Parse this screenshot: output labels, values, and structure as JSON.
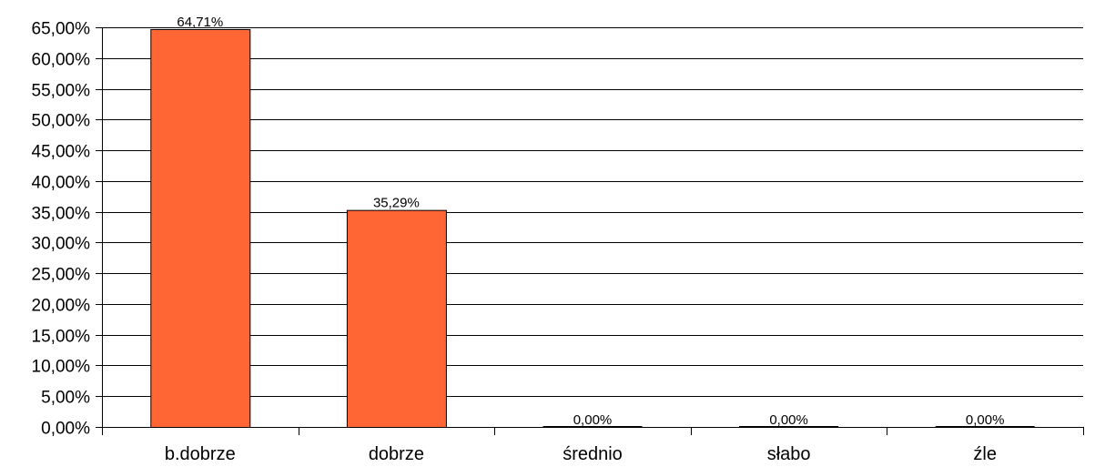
{
  "chart_data": {
    "type": "bar",
    "categories": [
      "b.dobrze",
      "dobrze",
      "średnio",
      "słabo",
      "źle"
    ],
    "values": [
      64.71,
      35.29,
      0.0,
      0.0,
      0.0
    ],
    "data_labels": [
      "64,71%",
      "35,29%",
      "0,00%",
      "0,00%",
      "0,00%"
    ],
    "title": "",
    "xlabel": "",
    "ylabel": "",
    "ylim": [
      0,
      65
    ],
    "y_ticks": [
      0,
      5,
      10,
      15,
      20,
      25,
      30,
      35,
      40,
      45,
      50,
      55,
      60,
      65
    ],
    "y_tick_labels": [
      "0,00%",
      "5,00%",
      "10,00%",
      "15,00%",
      "20,00%",
      "25,00%",
      "30,00%",
      "35,00%",
      "40,00%",
      "45,00%",
      "50,00%",
      "55,00%",
      "60,00%",
      "65,00%"
    ],
    "grid": true,
    "legend": "none",
    "bar_color": "#ff6633",
    "bar_edge_color": "#000000"
  }
}
